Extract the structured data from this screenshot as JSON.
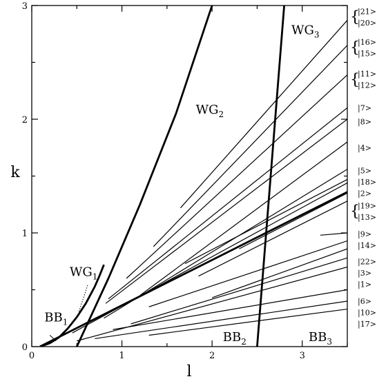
{
  "chart_data": {
    "type": "line",
    "xlabel": "l",
    "ylabel": "k",
    "xlim": [
      0,
      3.5
    ],
    "ylim": [
      0,
      3
    ],
    "x_ticks": [
      "0",
      "1",
      "2",
      "3"
    ],
    "y_ticks": [
      "0",
      "1",
      "2",
      "3"
    ],
    "grid": false,
    "boundaries": [
      {
        "points": [
          [
            0.09,
            0
          ],
          [
            0.2,
            0.03
          ],
          [
            0.3,
            0.08
          ],
          [
            0.4,
            0.16
          ],
          [
            0.5,
            0.26
          ],
          [
            0.6,
            0.38
          ],
          [
            0.7,
            0.53
          ],
          [
            0.75,
            0.62
          ],
          [
            0.8,
            0.72
          ]
        ]
      },
      {
        "points": [
          [
            0.5,
            0
          ],
          [
            0.85,
            0.6
          ],
          [
            1.2,
            1.25
          ],
          [
            1.6,
            2.05
          ],
          [
            2.0,
            3.0
          ]
        ]
      },
      {
        "points": [
          [
            2.5,
            0
          ],
          [
            2.8,
            3.0
          ]
        ]
      },
      {
        "points": [
          [
            0.09,
            0
          ],
          [
            3.5,
            1.36
          ]
        ]
      }
    ],
    "lines": [
      {
        "state": "|21>",
        "x": [
          1.65,
          3.5
        ],
        "y": [
          1.22,
          2.87
        ]
      },
      {
        "state": "|16>",
        "x": [
          1.35,
          3.5
        ],
        "y": [
          0.88,
          2.65
        ]
      },
      {
        "state": "|11>",
        "x": [
          1.05,
          3.5
        ],
        "y": [
          0.6,
          2.39
        ]
      },
      {
        "state": "|7>",
        "x": [
          0.85,
          3.5
        ],
        "y": [
          0.42,
          2.1
        ]
      },
      {
        "state": "|8>",
        "x": [
          0.82,
          3.5
        ],
        "y": [
          0.38,
          2.0
        ]
      },
      {
        "state": "|4>",
        "x": [
          1.2,
          3.5
        ],
        "y": [
          0.45,
          1.8
        ]
      },
      {
        "state": "|5>",
        "x": [
          0.8,
          3.5
        ],
        "y": [
          0.25,
          1.56
        ]
      },
      {
        "state": "|18>",
        "x": [
          1.7,
          3.5
        ],
        "y": [
          0.73,
          1.47
        ]
      },
      {
        "state": "|2>",
        "x": [
          0.45,
          3.5
        ],
        "y": [
          0.12,
          1.44
        ]
      },
      {
        "state": "|19>",
        "x": [
          2.3,
          3.5
        ],
        "y": [
          0.86,
          1.35
        ]
      },
      {
        "state": "|13>",
        "x": [
          1.85,
          3.5
        ],
        "y": [
          0.62,
          1.28
        ]
      },
      {
        "state": "|9>",
        "x": [
          3.2,
          3.5
        ],
        "y": [
          0.98,
          1.0
        ]
      },
      {
        "state": "|14>",
        "x": [
          1.3,
          3.5
        ],
        "y": [
          0.35,
          0.93
        ]
      },
      {
        "state": "|22>",
        "x": [
          2.0,
          3.5
        ],
        "y": [
          0.43,
          0.86
        ]
      },
      {
        "state": "|3>",
        "x": [
          1.1,
          3.5
        ],
        "y": [
          0.2,
          0.78
        ]
      },
      {
        "state": "|1>",
        "x": [
          0.5,
          3.5
        ],
        "y": [
          0.05,
          0.7
        ]
      },
      {
        "state": "|6>",
        "x": [
          0.9,
          3.5
        ],
        "y": [
          0.15,
          0.5
        ]
      },
      {
        "state": "|10>",
        "x": [
          0.7,
          3.5
        ],
        "y": [
          0.07,
          0.4
        ]
      },
      {
        "state": "|17>",
        "x": [
          1.3,
          3.5
        ],
        "y": [
          0.1,
          0.33
        ]
      }
    ],
    "regions": [
      {
        "base": "WG",
        "sub": "1",
        "x": 0.42,
        "y": 0.62
      },
      {
        "base": "BB",
        "sub": "1",
        "x": 0.14,
        "y": 0.22
      },
      {
        "base": "WG",
        "sub": "2",
        "x": 1.82,
        "y": 2.05
      },
      {
        "base": "WG",
        "sub": "3",
        "x": 2.88,
        "y": 2.75
      },
      {
        "base": "BB",
        "sub": "2",
        "x": 2.12,
        "y": 0.05
      },
      {
        "base": "BB",
        "sub": "3",
        "x": 3.07,
        "y": 0.05
      }
    ],
    "state_labels": [
      {
        "text": "|21>",
        "y": 2.95
      },
      {
        "text": "|20>",
        "y": 2.85
      },
      {
        "text": "|16>",
        "y": 2.68
      },
      {
        "text": "|15>",
        "y": 2.58
      },
      {
        "text": "|11>",
        "y": 2.4
      },
      {
        "text": "|12>",
        "y": 2.3
      },
      {
        "text": "|7>",
        "y": 2.1
      },
      {
        "text": "|8>",
        "y": 1.98
      },
      {
        "text": "|4>",
        "y": 1.75
      },
      {
        "text": "|5>",
        "y": 1.55
      },
      {
        "text": "|18>",
        "y": 1.45
      },
      {
        "text": "|2>",
        "y": 1.35
      },
      {
        "text": "|19>",
        "y": 1.24
      },
      {
        "text": "|13>",
        "y": 1.14
      },
      {
        "text": "|9>",
        "y": 0.99
      },
      {
        "text": "|14>",
        "y": 0.89
      },
      {
        "text": "|22>",
        "y": 0.75
      },
      {
        "text": "|3>",
        "y": 0.65
      },
      {
        "text": "|1>",
        "y": 0.55
      },
      {
        "text": "|6>",
        "y": 0.4
      },
      {
        "text": "|10>",
        "y": 0.3
      },
      {
        "text": "|17>",
        "y": 0.2
      }
    ],
    "braces": [
      {
        "y": 2.9
      },
      {
        "y": 2.63
      },
      {
        "y": 2.35
      },
      {
        "y": 1.19
      }
    ]
  }
}
